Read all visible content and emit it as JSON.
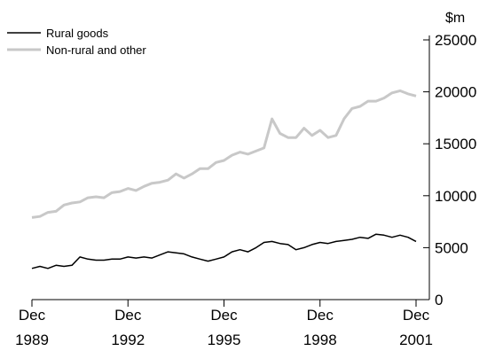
{
  "chart_data": {
    "type": "line",
    "title": "",
    "xlabel": "",
    "ylabel": "",
    "y_unit": "$m",
    "ylim": [
      0,
      25000
    ],
    "y_ticks": [
      0,
      5000,
      10000,
      15000,
      20000,
      25000
    ],
    "x_ticks": [
      {
        "line1": "Dec",
        "line2": "1989"
      },
      {
        "line1": "Dec",
        "line2": "1992"
      },
      {
        "line1": "Dec",
        "line2": "1995"
      },
      {
        "line1": "Dec",
        "line2": "1998"
      },
      {
        "line1": "Dec",
        "line2": "2001"
      }
    ],
    "x_start": "Dec 1989",
    "x_end": "Dec 2001",
    "grid": false,
    "legend_position": "top-left",
    "series": [
      {
        "name": "Rural goods",
        "color": "#000000",
        "values": [
          3000,
          3200,
          3000,
          3300,
          3200,
          3300,
          4100,
          3900,
          3800,
          3800,
          3900,
          3900,
          4100,
          4000,
          4100,
          4000,
          4300,
          4600,
          4500,
          4400,
          4100,
          3900,
          3700,
          3900,
          4100,
          4600,
          4800,
          4600,
          5000,
          5500,
          5600,
          5400,
          5300,
          4800,
          5000,
          5300,
          5500,
          5400,
          5600,
          5700,
          5800,
          6000,
          5900,
          6300,
          6200,
          6000,
          6200,
          6000,
          5600
        ]
      },
      {
        "name": "Non-rural and other",
        "color": "#c8c8c8",
        "values": [
          7900,
          8000,
          8400,
          8500,
          9100,
          9300,
          9400,
          9800,
          9900,
          9800,
          10300,
          10400,
          10700,
          10500,
          10900,
          11200,
          11300,
          11500,
          12100,
          11700,
          12100,
          12600,
          12600,
          13200,
          13400,
          13900,
          14200,
          14000,
          14300,
          14600,
          17400,
          16000,
          15600,
          15600,
          16500,
          15800,
          16300,
          15600,
          15800,
          17400,
          18400,
          18600,
          19100,
          19100,
          19400,
          19900,
          20100,
          19800,
          19600
        ]
      }
    ]
  }
}
